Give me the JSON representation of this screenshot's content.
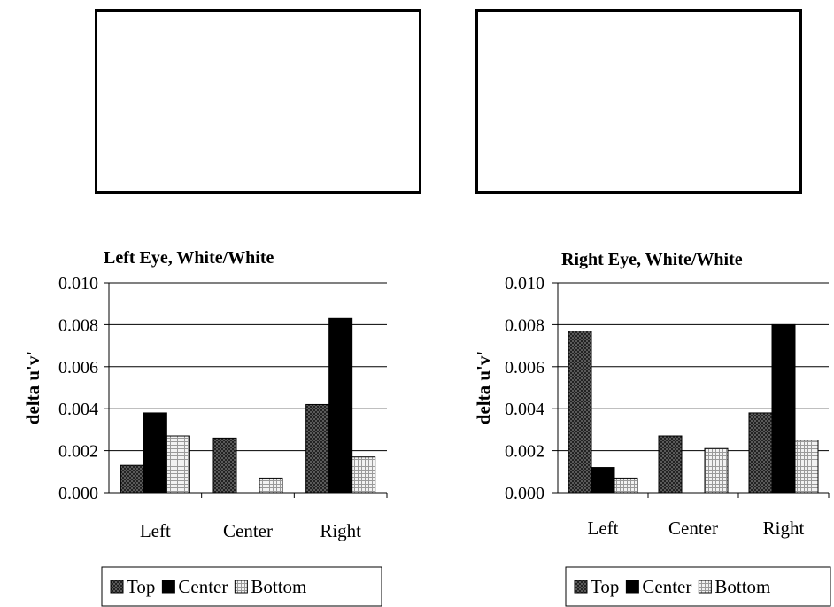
{
  "chart_data": [
    {
      "type": "bar",
      "title": "Left Eye, White/White",
      "xlabel": "",
      "ylabel": "delta u'v'",
      "ylim": [
        0,
        0.01
      ],
      "yticks": [
        "0.000",
        "0.002",
        "0.004",
        "0.006",
        "0.008",
        "0.010"
      ],
      "categories": [
        "Left",
        "Center",
        "Right"
      ],
      "series": [
        {
          "name": "Top",
          "values": [
            0.0013,
            0.0026,
            0.0042
          ]
        },
        {
          "name": "Center",
          "values": [
            0.0038,
            0.0,
            0.0083
          ]
        },
        {
          "name": "Bottom",
          "values": [
            0.0027,
            0.0007,
            0.0017
          ]
        }
      ],
      "grid": true,
      "legend_position": "bottom"
    },
    {
      "type": "bar",
      "title": "Right Eye, White/White",
      "xlabel": "",
      "ylabel": "delta u'v'",
      "ylim": [
        0,
        0.01
      ],
      "yticks": [
        "0.000",
        "0.002",
        "0.004",
        "0.006",
        "0.008",
        "0.010"
      ],
      "categories": [
        "Left",
        "Center",
        "Right"
      ],
      "series": [
        {
          "name": "Top",
          "values": [
            0.0077,
            0.0027,
            0.0038
          ]
        },
        {
          "name": "Center",
          "values": [
            0.0012,
            0.0,
            0.008
          ]
        },
        {
          "name": "Bottom",
          "values": [
            0.0007,
            0.0021,
            0.0025
          ]
        }
      ],
      "grid": true,
      "legend_position": "bottom"
    }
  ],
  "colors": {
    "top": "#4a4a4a",
    "center": "#000000",
    "bottom": "#dcdcdc"
  }
}
